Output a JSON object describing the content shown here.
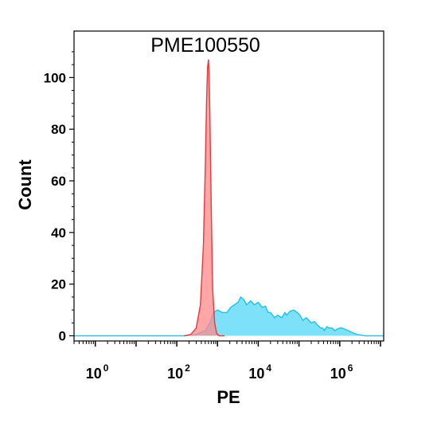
{
  "chart_data": {
    "type": "area",
    "title": "PME100550",
    "xlabel": "PE",
    "ylabel": "Count",
    "x_scale": "log10",
    "xlim": [
      0.3,
      12000000.0
    ],
    "ylim": [
      -2,
      118
    ],
    "grid": false,
    "legend": "none",
    "y_ticks": [
      "0",
      "20",
      "40",
      "60",
      "80",
      "100"
    ],
    "y_tick_values": [
      0,
      20,
      40,
      60,
      80,
      100
    ],
    "x_ticks": [
      {
        "base": "10",
        "exp": "0",
        "value": 1
      },
      {
        "base": "10",
        "exp": "2",
        "value": 100
      },
      {
        "base": "10",
        "exp": "4",
        "value": 10000
      },
      {
        "base": "10",
        "exp": "6",
        "value": 1000000
      }
    ],
    "series": [
      {
        "color_fill": "#ff8a8a",
        "color_line": "#e8393d",
        "x": [
          150,
          220,
          300,
          380,
          450,
          500,
          540,
          570,
          600,
          620,
          650,
          700,
          760,
          850,
          950,
          1100,
          1500
        ],
        "y": [
          0,
          0.5,
          3,
          12,
          35,
          65,
          92,
          104,
          107,
          102,
          85,
          50,
          18,
          5,
          1,
          0,
          0
        ]
      },
      {
        "color_fill": "#66ddf8",
        "color_line": "#22bfea",
        "x": [
          0.3,
          150,
          300,
          500,
          650,
          800,
          1000,
          1300,
          1700,
          2100,
          2600,
          3200,
          3700,
          4400,
          5200,
          6500,
          8000,
          10000,
          12500,
          15000,
          17500,
          20000,
          25000,
          30000,
          38000,
          45000,
          50000,
          60000,
          75000,
          90000,
          105000,
          125000,
          150000,
          175000,
          200000,
          240000,
          290000,
          340000,
          380000,
          420000,
          480000,
          550000,
          650000,
          750000,
          850000,
          1000000,
          1150000,
          1350000,
          1600000,
          1900000,
          2200000,
          2700000,
          3300000,
          4200000,
          12000000
        ],
        "y": [
          0,
          0,
          0.5,
          2,
          5,
          9,
          10,
          9,
          9,
          11,
          12,
          13,
          15,
          14,
          12,
          13.5,
          12,
          13,
          11,
          11.5,
          9,
          9,
          7,
          8,
          7,
          9,
          8,
          9.5,
          10,
          9,
          8,
          6,
          7,
          6,
          5,
          5.5,
          4,
          3,
          3,
          2,
          3.5,
          3,
          3,
          2,
          2.5,
          3,
          3,
          2.5,
          2,
          1.5,
          1,
          0.5,
          0.3,
          0,
          0
        ]
      }
    ]
  }
}
